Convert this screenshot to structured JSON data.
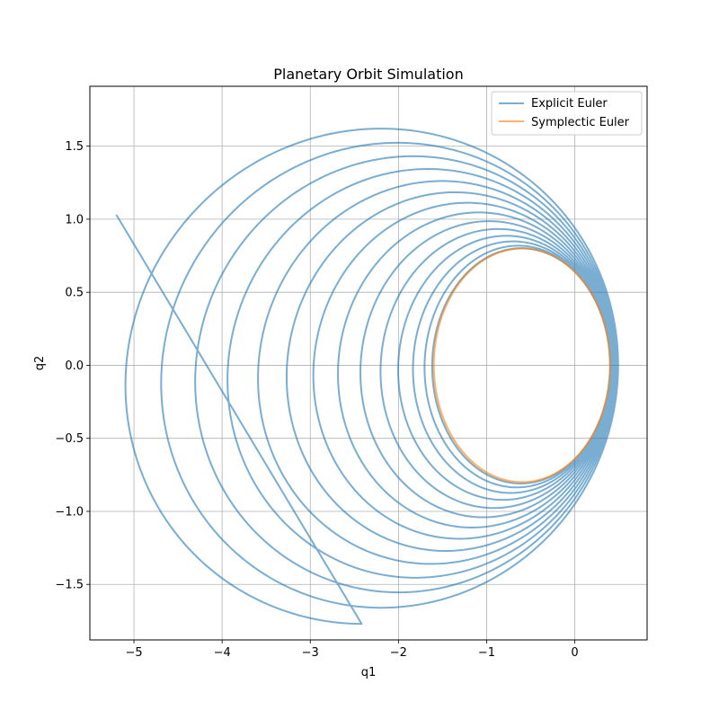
{
  "chart_data": {
    "type": "line",
    "title": "Planetary Orbit Simulation",
    "xlabel": "q1",
    "ylabel": "q2",
    "xlim": [
      -5.5,
      0.82
    ],
    "ylim": [
      -1.88,
      1.91
    ],
    "xticks": [
      -5,
      -4,
      -3,
      -2,
      -1,
      0
    ],
    "yticks": [
      -1.5,
      -1.0,
      -0.5,
      0.0,
      0.5,
      1.0,
      1.5
    ],
    "xtick_labels": [
      "−5",
      "−4",
      "−3",
      "−2",
      "−1",
      "0"
    ],
    "ytick_labels": [
      "−1.5",
      "−1.0",
      "−0.5",
      "0.0",
      "0.5",
      "1.0",
      "1.5"
    ],
    "grid": true,
    "legend_position": "upper-right",
    "series": [
      {
        "name": "Explicit Euler",
        "color": "#1f77b4",
        "opacity": 0.6,
        "kind": "spiral",
        "start": [
          0.4,
          0.0
        ],
        "end": [
          -5.2,
          1.03
        ],
        "right_extent": [
          0.4,
          0.5
        ],
        "left_extent": [
          -1.6,
          -5.2
        ],
        "vertical_semi_axis": [
          0.8,
          1.72
        ],
        "left_y_offset": [
          0.0,
          -0.1
        ],
        "turns": 13.75
      },
      {
        "name": "Symplectic Euler",
        "color": "#ff7f0e",
        "opacity": 0.6,
        "kind": "ellipse",
        "center": [
          -0.6,
          0.0
        ],
        "semi_axes": [
          1.0,
          0.8
        ],
        "x_range": [
          -1.6,
          0.4
        ]
      }
    ]
  }
}
